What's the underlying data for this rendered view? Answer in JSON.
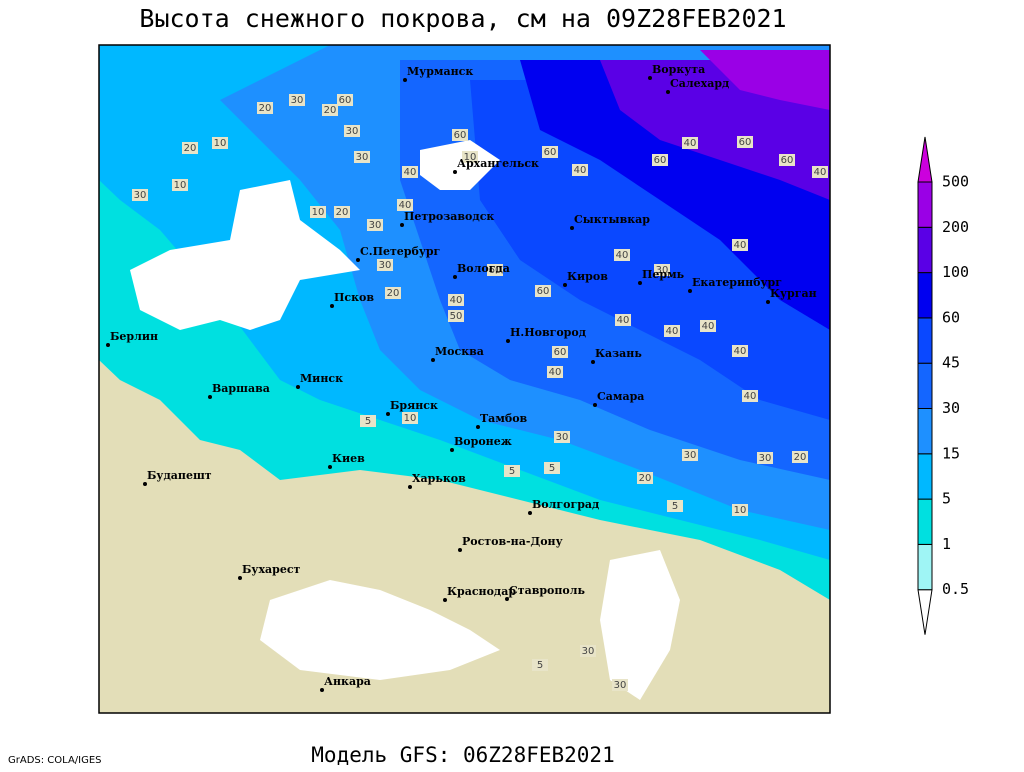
{
  "header": {
    "title": "Высота снежного покрова, см на 09Z28FEB2021"
  },
  "footer": {
    "credit": "GrADS: COLA/IGES",
    "model": "Модель GFS: 06Z28FEB2021"
  },
  "map": {
    "cities": [
      "Мурманск",
      "Воркута",
      "Салехард",
      "Архангельск",
      "Сыктывкар",
      "Петрозаводск",
      "С.Петербург",
      "Вологда",
      "Киров",
      "Пермь",
      "Екатеринбург",
      "Псков",
      "Курган",
      "Н.Новгород",
      "Москва",
      "Казань",
      "Берлин",
      "Минск",
      "Варшава",
      "Самара",
      "Брянск",
      "Тамбов",
      "Киев",
      "Воронеж",
      "Будапешт",
      "Харьков",
      "Волгоград",
      "Ростов-на-Дону",
      "Бухарест",
      "Краснодар",
      "Ставрополь",
      "Анкара"
    ],
    "contour_labels": [
      "20",
      "30",
      "60",
      "20",
      "30",
      "20",
      "10",
      "10",
      "30",
      "10",
      "20",
      "30",
      "40",
      "30",
      "40",
      "60",
      "10",
      "60",
      "40",
      "60",
      "40",
      "60",
      "60",
      "40",
      "40",
      "30",
      "40",
      "60",
      "60",
      "50",
      "40",
      "40",
      "40",
      "40",
      "40",
      "40",
      "60",
      "40",
      "30",
      "10",
      "5",
      "30",
      "30",
      "20",
      "20",
      "5",
      "5",
      "5",
      "10",
      "5",
      "30",
      "30",
      "30",
      "20"
    ]
  },
  "legend": {
    "levels": [
      0.5,
      1,
      5,
      15,
      30,
      45,
      60,
      100,
      200,
      500
    ],
    "colors": [
      "#ffffff",
      "#9ff5f5",
      "#00e0e0",
      "#00b8ff",
      "#1e90ff",
      "#1466ff",
      "#0a48ff",
      "#0000f0",
      "#5a00e6",
      "#9a00e6",
      "#cc00dd"
    ]
  }
}
